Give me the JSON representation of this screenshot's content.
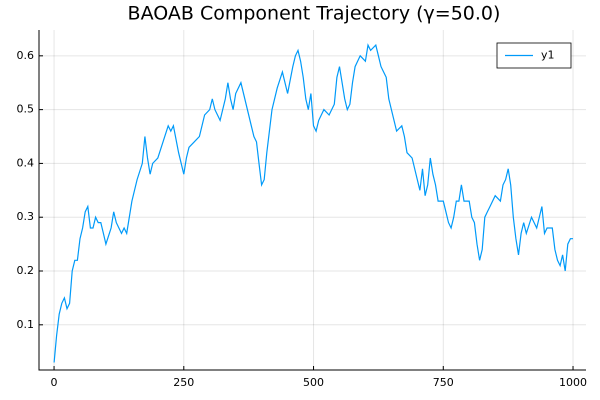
{
  "chart_data": {
    "type": "line",
    "title": "BAOAB Component Trajectory (γ=50.0)",
    "x": [
      0,
      5,
      10,
      15,
      20,
      25,
      30,
      35,
      40,
      45,
      50,
      55,
      60,
      65,
      70,
      75,
      80,
      85,
      90,
      95,
      100,
      110,
      115,
      120,
      125,
      130,
      135,
      140,
      150,
      160,
      170,
      175,
      180,
      185,
      190,
      200,
      210,
      220,
      225,
      230,
      240,
      250,
      255,
      260,
      270,
      280,
      290,
      300,
      305,
      310,
      320,
      330,
      335,
      340,
      345,
      350,
      360,
      370,
      380,
      385,
      390,
      395,
      400,
      405,
      410,
      420,
      430,
      440,
      450,
      460,
      465,
      470,
      475,
      480,
      485,
      490,
      495,
      500,
      505,
      510,
      520,
      530,
      540,
      545,
      550,
      555,
      560,
      565,
      570,
      575,
      580,
      590,
      600,
      605,
      610,
      620,
      625,
      630,
      640,
      645,
      650,
      660,
      670,
      675,
      680,
      690,
      700,
      705,
      710,
      715,
      720,
      725,
      730,
      735,
      740,
      750,
      755,
      760,
      765,
      770,
      775,
      780,
      785,
      790,
      800,
      805,
      810,
      815,
      820,
      825,
      830,
      835,
      840,
      850,
      860,
      865,
      870,
      875,
      880,
      885,
      890,
      895,
      900,
      905,
      910,
      920,
      930,
      940,
      945,
      950,
      960,
      965,
      970,
      975,
      980,
      985,
      990,
      995,
      1000
    ],
    "series": [
      {
        "name": "y1",
        "color": "#009af9",
        "values": [
          0.03,
          0.08,
          0.12,
          0.14,
          0.15,
          0.13,
          0.14,
          0.2,
          0.22,
          0.22,
          0.26,
          0.28,
          0.31,
          0.32,
          0.28,
          0.28,
          0.3,
          0.29,
          0.29,
          0.27,
          0.25,
          0.28,
          0.31,
          0.29,
          0.28,
          0.27,
          0.28,
          0.27,
          0.33,
          0.37,
          0.4,
          0.45,
          0.41,
          0.38,
          0.4,
          0.41,
          0.44,
          0.47,
          0.46,
          0.47,
          0.42,
          0.38,
          0.41,
          0.43,
          0.44,
          0.45,
          0.49,
          0.5,
          0.52,
          0.5,
          0.48,
          0.52,
          0.55,
          0.52,
          0.5,
          0.53,
          0.55,
          0.51,
          0.47,
          0.45,
          0.44,
          0.4,
          0.36,
          0.37,
          0.42,
          0.5,
          0.54,
          0.57,
          0.53,
          0.58,
          0.6,
          0.61,
          0.59,
          0.56,
          0.52,
          0.5,
          0.53,
          0.47,
          0.46,
          0.48,
          0.5,
          0.49,
          0.51,
          0.56,
          0.58,
          0.55,
          0.52,
          0.5,
          0.51,
          0.55,
          0.58,
          0.6,
          0.59,
          0.62,
          0.61,
          0.62,
          0.6,
          0.58,
          0.56,
          0.52,
          0.5,
          0.46,
          0.47,
          0.45,
          0.42,
          0.41,
          0.37,
          0.35,
          0.39,
          0.34,
          0.36,
          0.41,
          0.38,
          0.36,
          0.33,
          0.33,
          0.31,
          0.29,
          0.28,
          0.3,
          0.33,
          0.33,
          0.36,
          0.33,
          0.33,
          0.3,
          0.29,
          0.25,
          0.22,
          0.24,
          0.3,
          0.31,
          0.32,
          0.34,
          0.33,
          0.36,
          0.37,
          0.39,
          0.36,
          0.3,
          0.26,
          0.23,
          0.27,
          0.29,
          0.27,
          0.3,
          0.28,
          0.32,
          0.27,
          0.28,
          0.28,
          0.24,
          0.22,
          0.21,
          0.23,
          0.2,
          0.25,
          0.26,
          0.26
        ]
      }
    ],
    "xlim": [
      -29,
      1025
    ],
    "ylim": [
      0.016,
      0.648
    ],
    "xticks": [
      0,
      250,
      500,
      750,
      1000
    ],
    "yticks": [
      0.1,
      0.2,
      0.3,
      0.4,
      0.5,
      0.6
    ],
    "grid": true,
    "legend": "top-right"
  }
}
